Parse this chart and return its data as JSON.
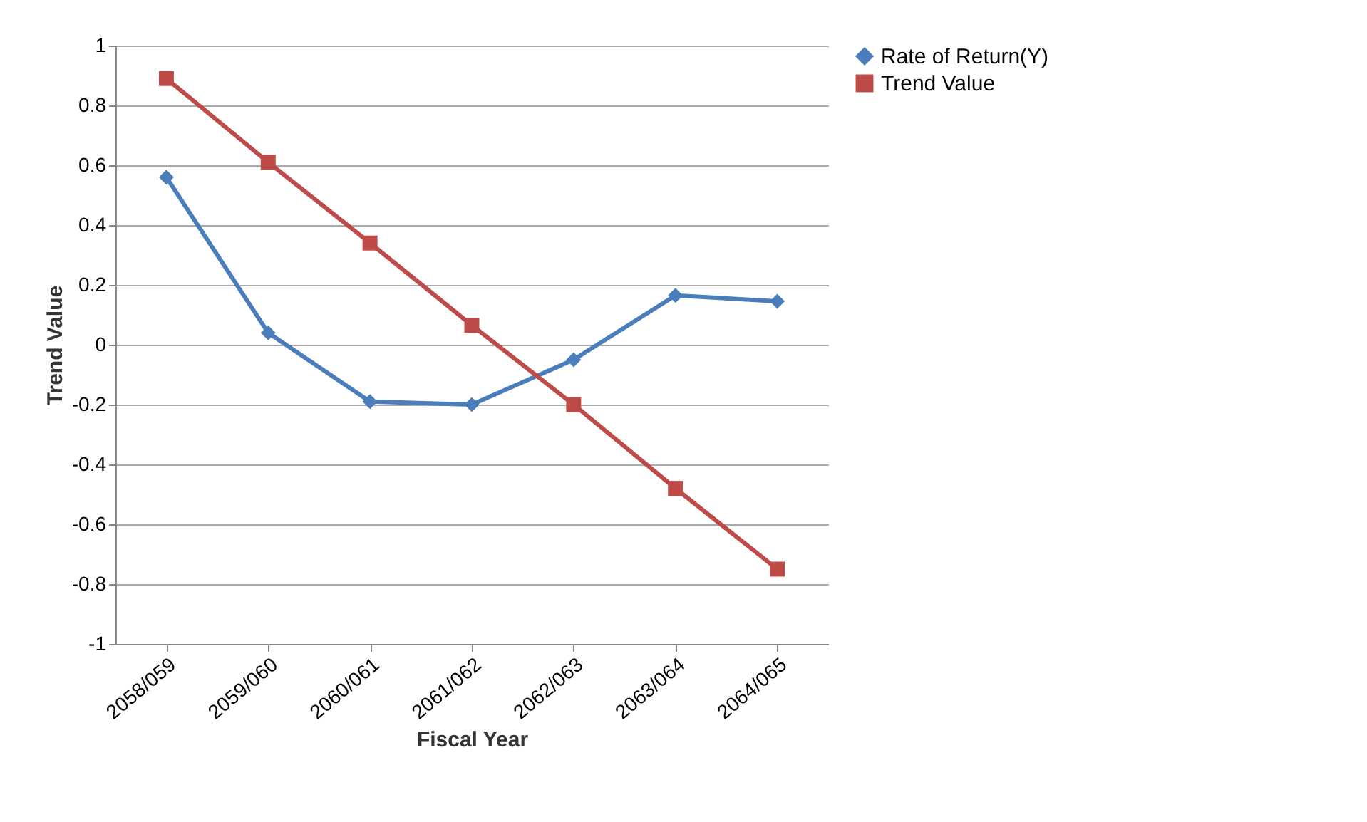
{
  "chart_data": {
    "type": "line",
    "xlabel": "Fiscal Year",
    "ylabel": "Trend Value",
    "categories": [
      "2058/059",
      "2059/060",
      "2060/061",
      "2061/062",
      "2062/063",
      "2063/064",
      "2064/065"
    ],
    "series": [
      {
        "name": "Rate of Return(Y)",
        "color": "#4a7ebb",
        "marker": "diamond",
        "values": [
          0.56,
          0.04,
          -0.19,
          -0.2,
          -0.05,
          0.165,
          0.145
        ]
      },
      {
        "name": "Trend Value",
        "color": "#be4b48",
        "marker": "square",
        "values": [
          0.89,
          0.61,
          0.34,
          0.065,
          -0.2,
          -0.48,
          -0.75
        ]
      }
    ],
    "ylim": [
      -1,
      1
    ],
    "yticks": [
      -1,
      -0.8,
      -0.6,
      -0.4,
      -0.2,
      0,
      0.2,
      0.4,
      0.6,
      0.8,
      1
    ],
    "grid": "y",
    "legend": "right",
    "line_style": "solid"
  }
}
